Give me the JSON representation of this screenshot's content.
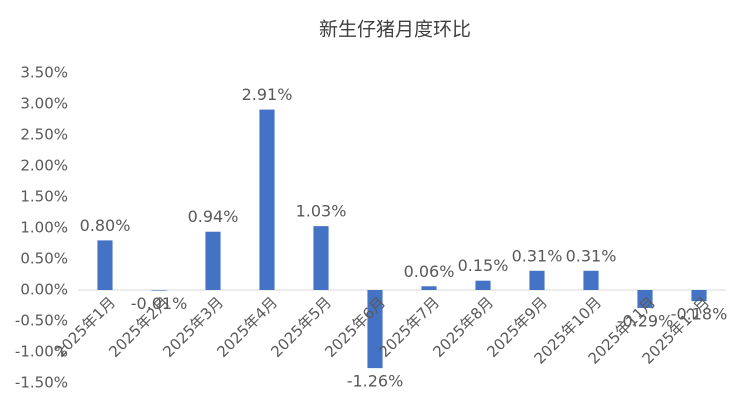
{
  "chart_data": {
    "type": "bar",
    "title": "新生仔猪月度环比",
    "categories": [
      "2025年1月",
      "2025年2月",
      "2025年3月",
      "2025年4月",
      "2025年5月",
      "2025年6月",
      "2025年7月",
      "2025年8月",
      "2025年9月",
      "2025年10月",
      "2025年11月",
      "2025年12月"
    ],
    "values": [
      0.8,
      -0.01,
      0.94,
      2.91,
      1.03,
      -1.26,
      0.06,
      0.15,
      0.31,
      0.31,
      -0.29,
      -0.18
    ],
    "value_labels": [
      "0.80%",
      "-0.01%",
      "0.94%",
      "2.91%",
      "1.03%",
      "-1.26%",
      "0.06%",
      "0.15%",
      "0.31%",
      "0.31%",
      "-0.29%",
      "-0.18%"
    ],
    "color": "#4472c4",
    "ylim": [
      -1.5,
      3.5
    ],
    "yticks": [
      {
        "value": -1.5,
        "label": "-1.50%"
      },
      {
        "value": -1.0,
        "label": "-1.00%"
      },
      {
        "value": -0.5,
        "label": "-0.50%"
      },
      {
        "value": 0,
        "label": "0.00%"
      },
      {
        "value": 0.5,
        "label": "0.50%"
      },
      {
        "value": 1.0,
        "label": "1.00%"
      },
      {
        "value": 1.5,
        "label": "1.50%"
      },
      {
        "value": 2.0,
        "label": "2.00%"
      },
      {
        "value": 2.5,
        "label": "2.50%"
      },
      {
        "value": 3.0,
        "label": "3.00%"
      },
      {
        "value": 3.5,
        "label": "3.50%"
      }
    ]
  }
}
